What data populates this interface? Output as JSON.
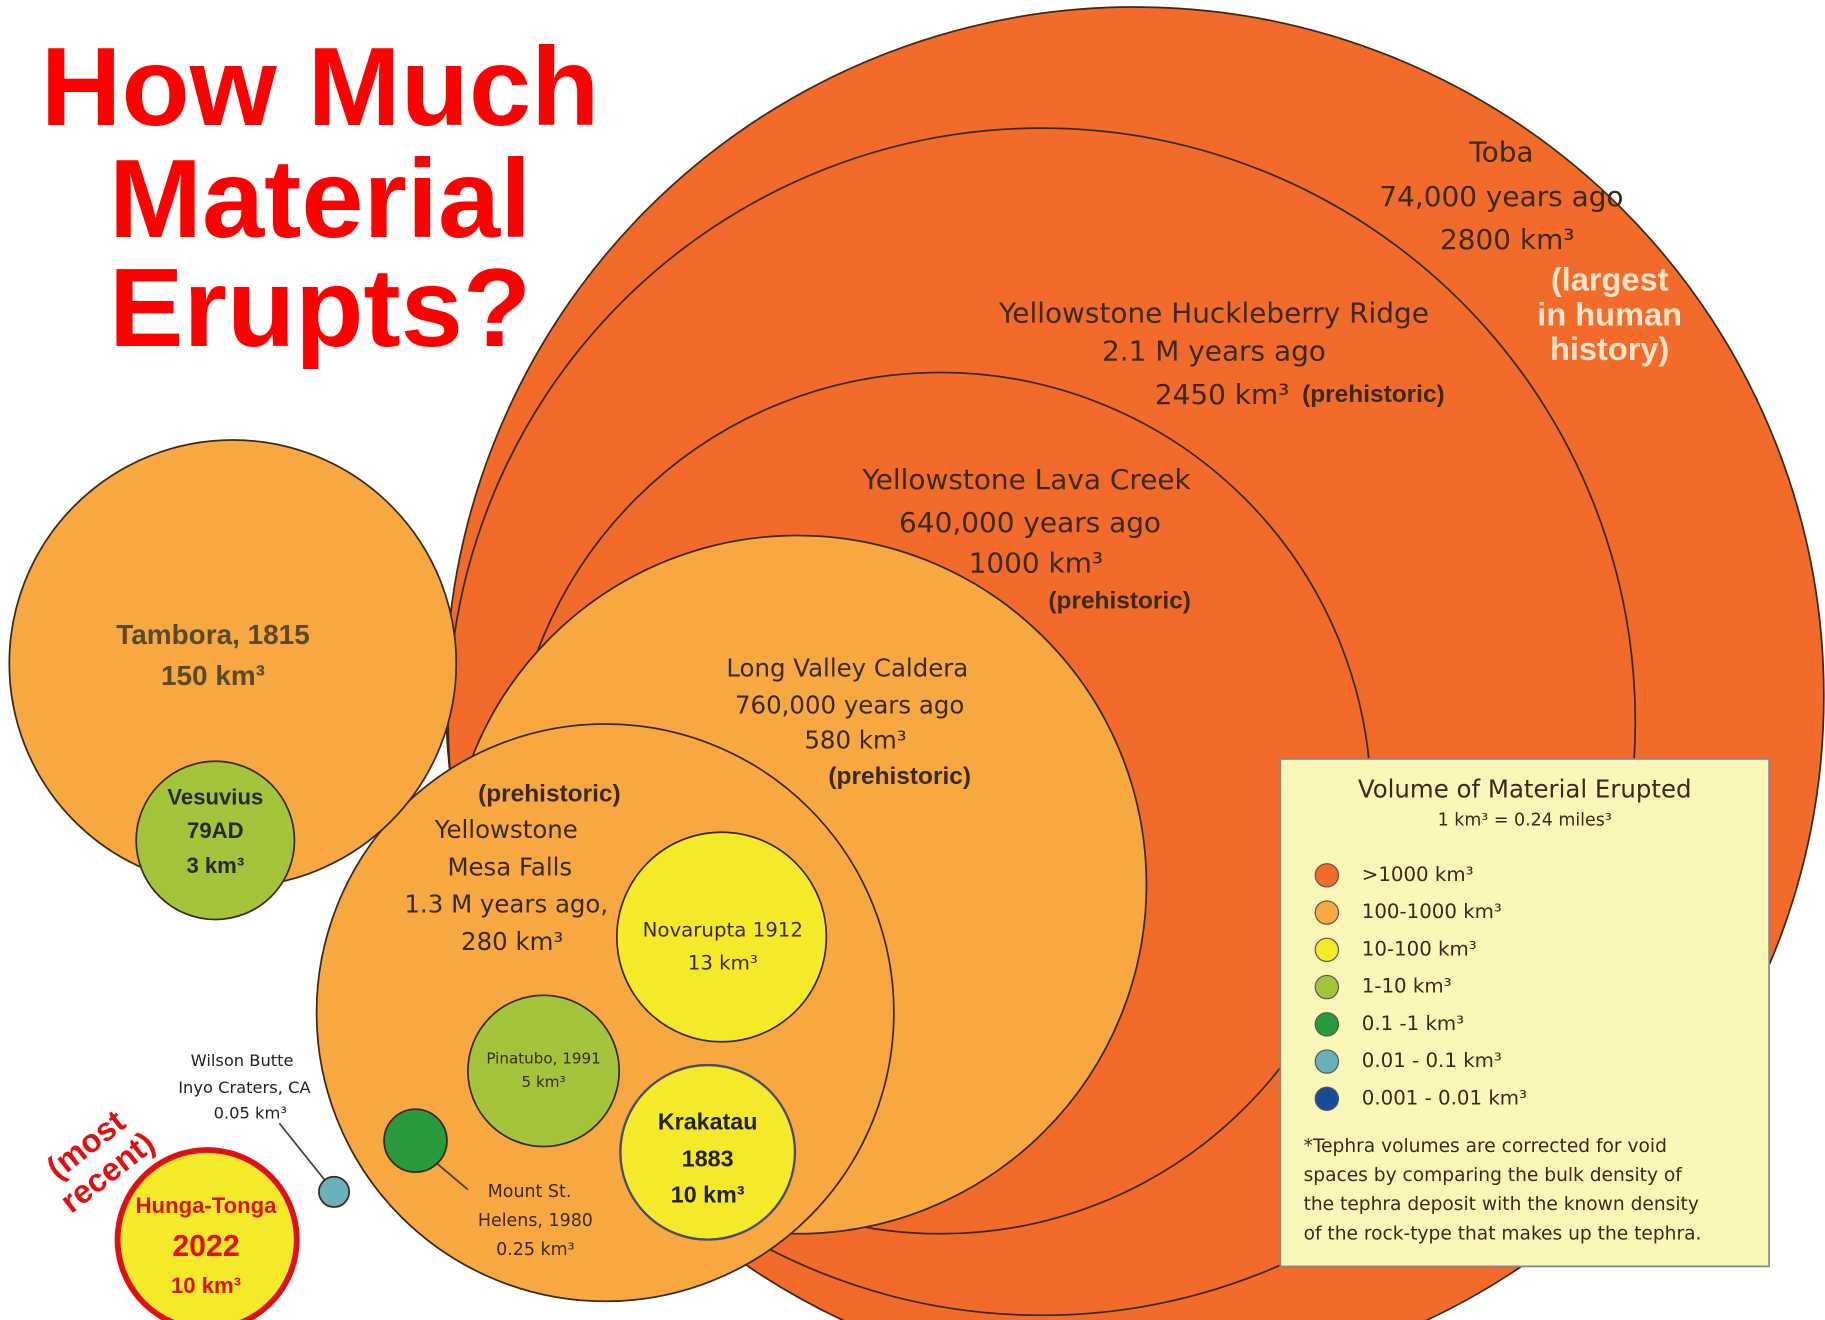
{
  "title": [
    "How Much",
    "Material",
    "Erupts?"
  ],
  "annotation": [
    "(most",
    "recent)"
  ],
  "eruptions": [
    {
      "lines": [
        "Toba",
        "74,000 years ago",
        "2800 km³",
        "(largest",
        "in human",
        "history)"
      ]
    },
    {
      "lines": [
        "Yellowstone  Huckleberry Ridge",
        "2.1 M years ago",
        "2450 km³",
        "(prehistoric)"
      ]
    },
    {
      "lines": [
        "Yellowstone Lava Creek",
        "640,000 years ago",
        "1000 km³",
        "(prehistoric)"
      ]
    },
    {
      "lines": [
        "Long Valley Caldera",
        "760,000 years ago",
        "580 km³",
        "(prehistoric)"
      ]
    },
    {
      "lines": [
        "(prehistoric)",
        "Yellowstone",
        "Mesa Falls",
        "1.3 M years ago,",
        "280 km³"
      ]
    },
    {
      "lines": [
        "Novarupta 1912",
        "13 km³"
      ]
    },
    {
      "lines": [
        "Pinatubo, 1991",
        "5 km³"
      ]
    },
    {
      "lines": [
        "Krakatau",
        "1883",
        "10 km³"
      ]
    },
    {
      "lines": [
        "Mount St.",
        "Helens, 1980",
        "0.25 km³"
      ]
    },
    {
      "lines": [
        "Wilson Butte",
        "Inyo Craters, CA",
        "0.05 km³"
      ]
    },
    {
      "lines": [
        "Tambora, 1815",
        "150 km³"
      ]
    },
    {
      "lines": [
        "Vesuvius",
        "79AD",
        "3 km³"
      ]
    },
    {
      "lines": [
        "Hunga-Tonga",
        "2022",
        "10 km³"
      ]
    }
  ],
  "legend": {
    "title": "Volume of Material Erupted",
    "subtitle": "1 km³ = 0.24 miles³",
    "items": [
      {
        "label": ">1000 km³",
        "color": "#f26b2a"
      },
      {
        "label": "100-1000 km³",
        "color": "#f8a840"
      },
      {
        "label": "10-100 km³",
        "color": "#f5ea2a"
      },
      {
        "label": "1-10 km³",
        "color": "#a4c43c"
      },
      {
        "label": "0.1 -1 km³",
        "color": "#2a9a3e"
      },
      {
        "label": "0.01 - 0.1 km³",
        "color": "#6ab0b8"
      },
      {
        "label": "0.001 - 0.01 km³",
        "color": "#1a4a9a"
      }
    ],
    "note": [
      "*Tephra volumes are corrected for void",
      "spaces by comparing the bulk density of",
      "the tephra deposit with the known density",
      "of the rock-type that makes up the tephra."
    ]
  }
}
